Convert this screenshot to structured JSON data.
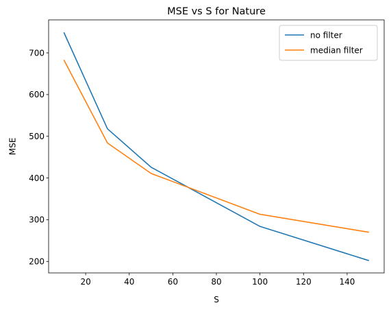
{
  "chart_data": {
    "type": "line",
    "title": "MSE vs S for Nature",
    "xlabel": "S",
    "ylabel": "MSE",
    "xlim": [
      3,
      157
    ],
    "ylim": [
      172.5,
      779
    ],
    "xticks": [
      20,
      40,
      60,
      80,
      100,
      120,
      140
    ],
    "yticks": [
      200,
      300,
      400,
      500,
      600,
      700
    ],
    "grid": false,
    "legend_position": "top-right",
    "series": [
      {
        "name": "no filter",
        "color": "#1f77b4",
        "x": [
          10,
          30,
          50,
          100,
          150
        ],
        "y": [
          749,
          518,
          426,
          284,
          202
        ]
      },
      {
        "name": "median filter",
        "color": "#ff7f0e",
        "x": [
          10,
          30,
          50,
          100,
          150
        ],
        "y": [
          683,
          484,
          411,
          313,
          270
        ]
      }
    ]
  }
}
